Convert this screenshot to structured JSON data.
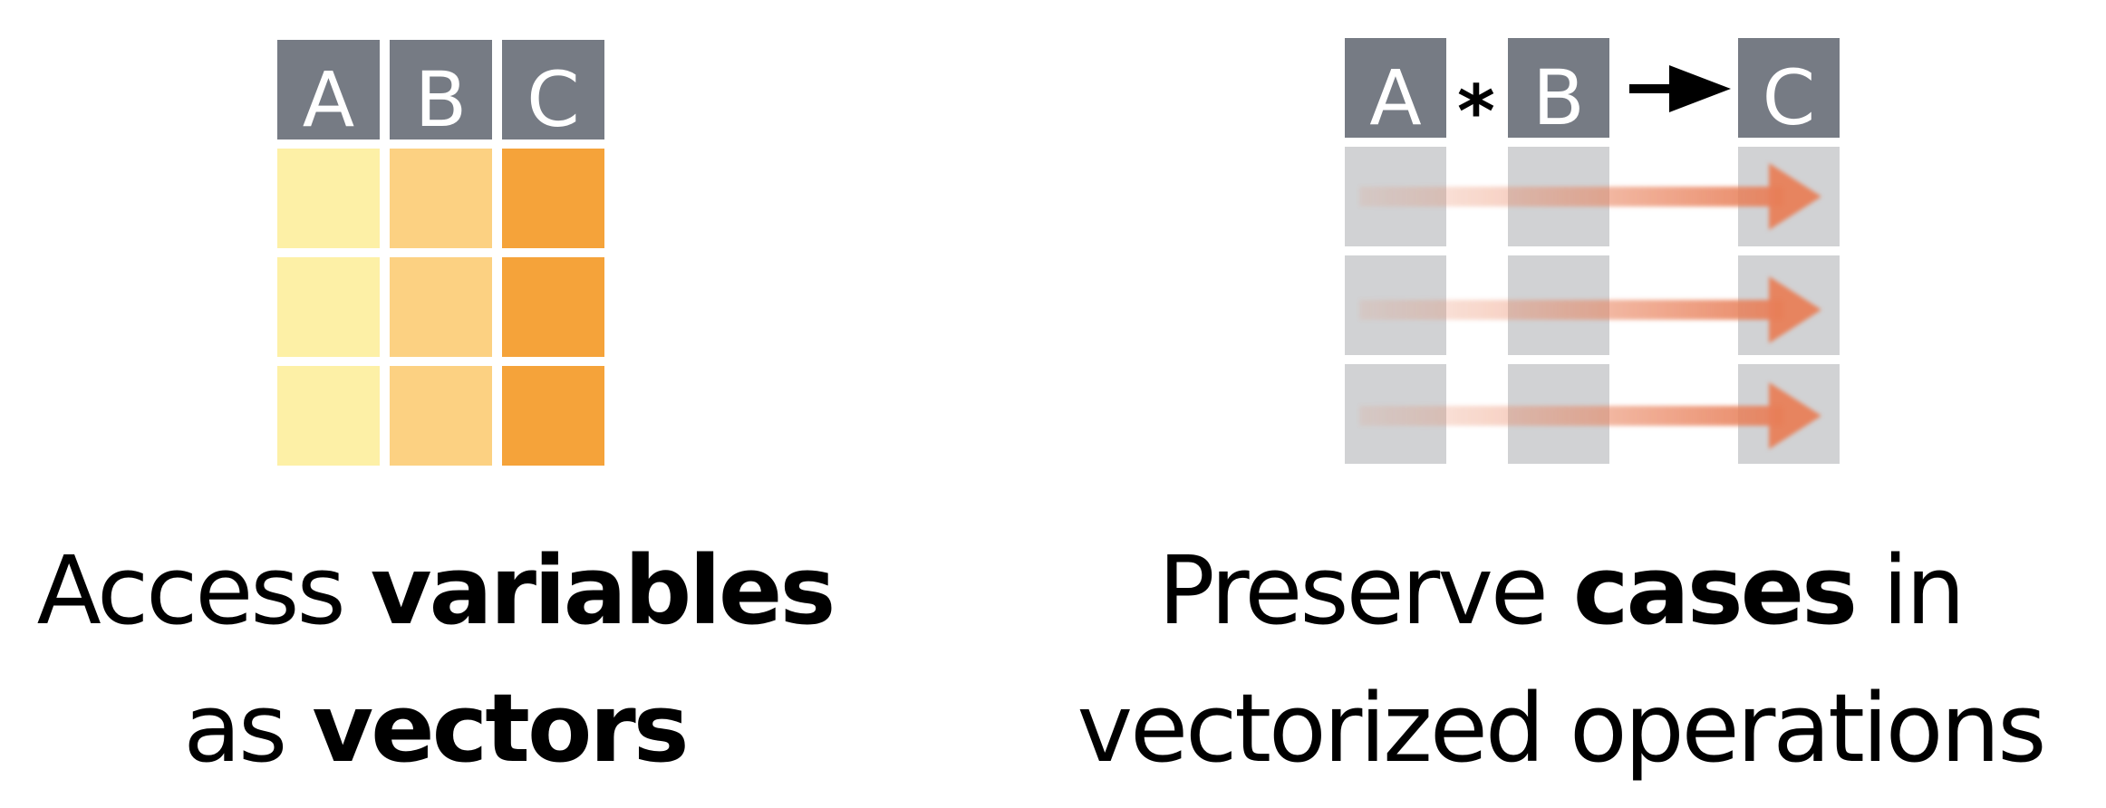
{
  "left": {
    "headers": [
      "A",
      "B",
      "C"
    ],
    "caption_line1_plain": "Access ",
    "caption_line1_bold": "variables",
    "caption_line2_plain": "as ",
    "caption_line2_bold": "vectors",
    "colors": {
      "header": "#767b84",
      "col_a": "#fdf0a6",
      "col_b": "#fcd182",
      "col_c": "#f5a33a"
    }
  },
  "right": {
    "headers": [
      "A",
      "B",
      "C"
    ],
    "operator_multiply": "*",
    "caption_line1_plain_a": "Preserve ",
    "caption_line1_bold": "cases",
    "caption_line1_plain_b": " in",
    "caption_line2": "vectorized operations",
    "colors": {
      "header": "#767b84",
      "cell": "#d1d2d4",
      "arrow": "#e8805a",
      "operator_arrow": "#000000"
    }
  }
}
